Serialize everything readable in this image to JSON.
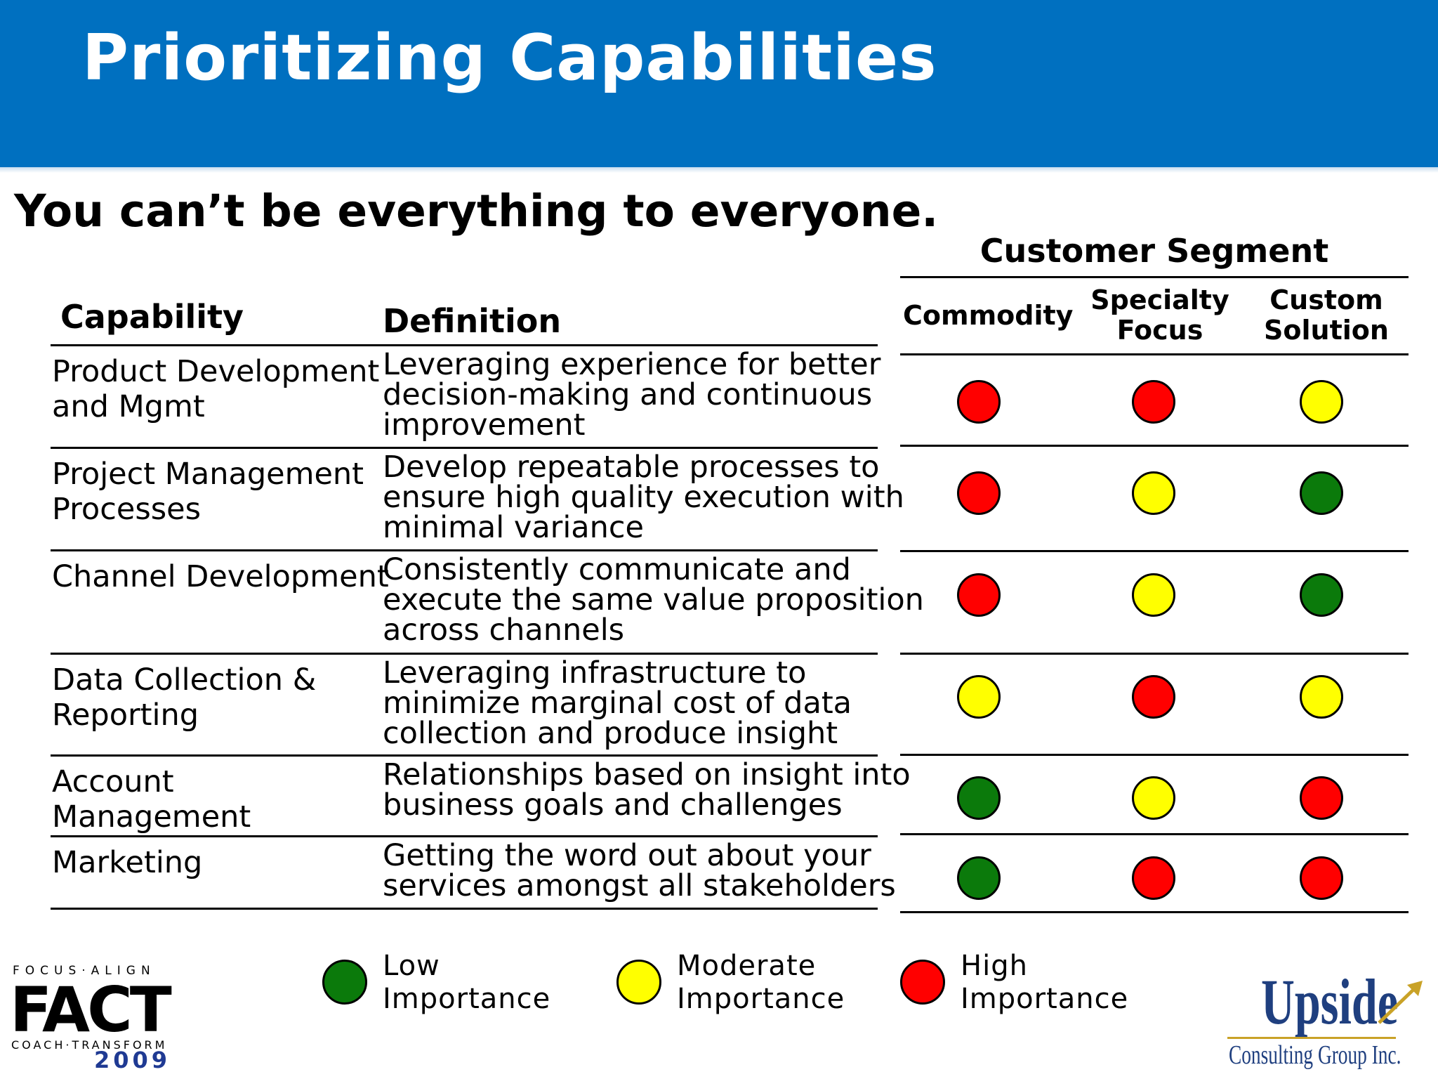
{
  "title": "Prioritizing Capabilities",
  "subtitle": "You can’t be everything to everyone.",
  "columns": {
    "capability": "Capability",
    "definition": "Definition"
  },
  "segment": {
    "title": "Customer Segment",
    "headers": [
      "Commodity",
      "Specialty\nFocus",
      "Custom\nSolution"
    ]
  },
  "rows": [
    {
      "capability": "Product Development\nand Mgmt",
      "definition": "Leveraging experience for better\ndecision-making and continuous\nimprovement",
      "ratings": [
        "high",
        "high",
        "moderate"
      ]
    },
    {
      "capability": "Project Management\nProcesses",
      "definition": "Develop repeatable processes to\nensure high quality execution with\nminimal variance",
      "ratings": [
        "high",
        "moderate",
        "low"
      ]
    },
    {
      "capability": "Channel Development",
      "definition": "Consistently communicate and\nexecute the same value proposition\nacross channels",
      "ratings": [
        "high",
        "moderate",
        "low"
      ]
    },
    {
      "capability": "Data Collection &\nReporting",
      "definition": "Leveraging infrastructure to\nminimize marginal cost of data\ncollection and produce insight",
      "ratings": [
        "moderate",
        "high",
        "moderate"
      ]
    },
    {
      "capability": "Account\nManagement",
      "definition": "Relationships based on insight into\nbusiness goals and challenges",
      "ratings": [
        "low",
        "moderate",
        "high"
      ]
    },
    {
      "capability": "Marketing",
      "definition": "Getting the word out about your\nservices amongst all stakeholders",
      "ratings": [
        "low",
        "high",
        "high"
      ]
    }
  ],
  "legend": {
    "low": "Low\nImportance",
    "moderate": "Moderate\nImportance",
    "high": "High\nImportance"
  },
  "colors": {
    "low": "#0b7a0b",
    "moderate": "#ffff00",
    "high": "#ff0000",
    "header": "#0070c0"
  },
  "logos": {
    "fact": {
      "top": "FOCUS·ALIGN",
      "word": "FACT",
      "bottom": "COACH·TRANSFORM",
      "year": "2009"
    },
    "upside": {
      "word": "Upside",
      "sub": "Consulting Group Inc."
    }
  }
}
